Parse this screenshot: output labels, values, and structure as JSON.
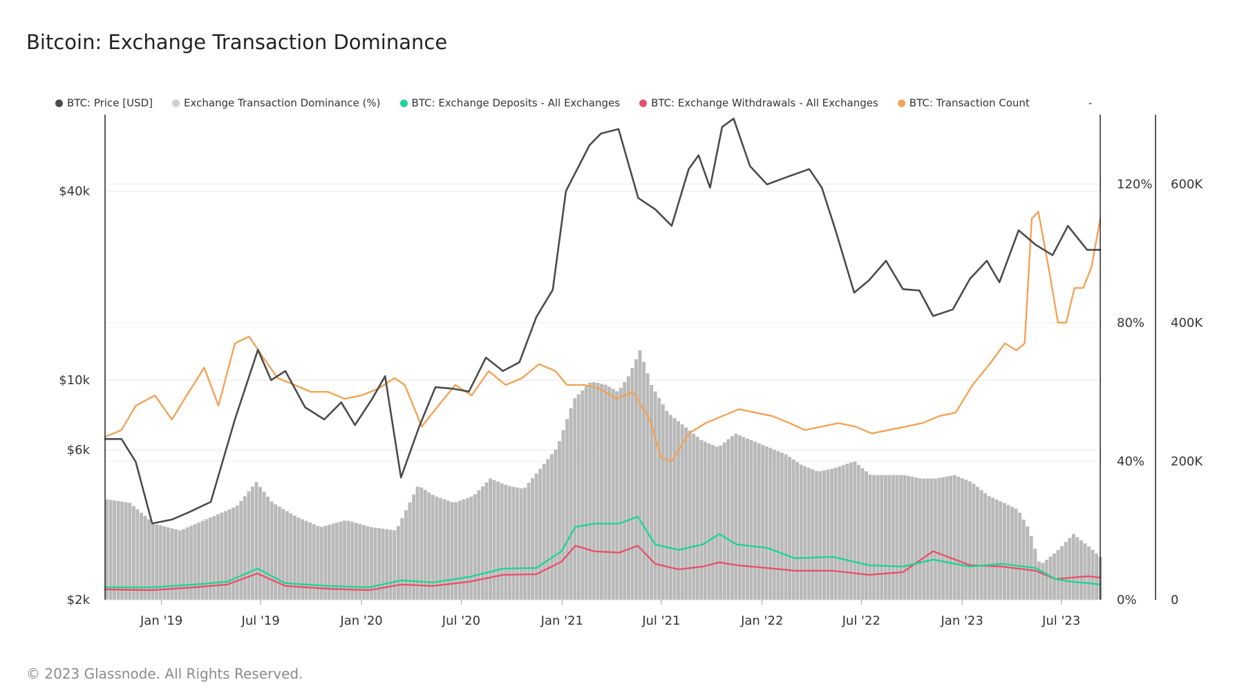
{
  "title": "Bitcoin: Exchange Transaction Dominance",
  "footer": "© 2023 Glassnode. All Rights Reserved.",
  "legend": [
    {
      "label": "BTC: Price [USD]",
      "color": "#4a4a4a"
    },
    {
      "label": "Exchange Transaction Dominance (%)",
      "color": "#cfcfcf"
    },
    {
      "label": "BTC: Exchange Deposits - All Exchanges",
      "color": "#1fd494"
    },
    {
      "label": "BTC: Exchange Withdrawals - All Exchanges",
      "color": "#e8516a"
    },
    {
      "label": "BTC: Transaction Count",
      "color": "#f2a255"
    }
  ],
  "legend_tail": "-",
  "chart_data": {
    "type": "line",
    "x_ticks": [
      "Jan '19",
      "Jul '19",
      "Jan '20",
      "Jul '20",
      "Jan '21",
      "Jul '21",
      "Jan '22",
      "Jul '22",
      "Jan '23",
      "Jul '23"
    ],
    "x_tick_dates": [
      "2019-01-01",
      "2019-07-01",
      "2020-01-01",
      "2020-07-01",
      "2021-01-01",
      "2021-07-01",
      "2022-01-01",
      "2022-07-01",
      "2023-01-01",
      "2023-07-01"
    ],
    "x_range": [
      "2018-09-20",
      "2023-09-10"
    ],
    "y_price_scale": "log",
    "y_price_ticks": [
      "$2k",
      "$6k",
      "$10k",
      "$40k"
    ],
    "y_price_tick_values": [
      2000,
      6000,
      10000,
      40000
    ],
    "y_price_range": [
      2000,
      70000
    ],
    "y_pct_ticks": [
      "0%",
      "40%",
      "80%",
      "120%"
    ],
    "y_pct_tick_values": [
      0,
      40,
      80,
      120
    ],
    "y_pct_range": [
      0,
      140
    ],
    "y_count_ticks": [
      "0",
      "200K",
      "400K",
      "600K"
    ],
    "y_count_tick_values": [
      0,
      200000,
      400000,
      600000
    ],
    "y_count_range": [
      0,
      700000
    ],
    "series": [
      {
        "name": "BTC: Price [USD]",
        "axis": "price",
        "color": "#4a4a4a",
        "x": [
          "2018-09-20",
          "2018-10-20",
          "2018-11-15",
          "2018-12-15",
          "2019-01-20",
          "2019-02-20",
          "2019-04-01",
          "2019-05-15",
          "2019-06-26",
          "2019-07-20",
          "2019-08-15",
          "2019-09-20",
          "2019-10-25",
          "2019-11-25",
          "2019-12-20",
          "2020-01-20",
          "2020-02-13",
          "2020-03-13",
          "2020-04-15",
          "2020-05-15",
          "2020-06-15",
          "2020-07-15",
          "2020-08-15",
          "2020-09-15",
          "2020-10-15",
          "2020-11-15",
          "2020-12-15",
          "2021-01-08",
          "2021-02-20",
          "2021-03-13",
          "2021-04-14",
          "2021-05-20",
          "2021-06-20",
          "2021-07-20",
          "2021-08-20",
          "2021-09-07",
          "2021-09-28",
          "2021-10-20",
          "2021-11-10",
          "2021-12-10",
          "2022-01-10",
          "2022-02-10",
          "2022-03-28",
          "2022-04-20",
          "2022-05-15",
          "2022-06-18",
          "2022-07-15",
          "2022-08-15",
          "2022-09-15",
          "2022-10-15",
          "2022-11-09",
          "2022-12-15",
          "2023-01-15",
          "2023-02-15",
          "2023-03-10",
          "2023-04-14",
          "2023-05-15",
          "2023-06-15",
          "2023-07-13",
          "2023-08-17",
          "2023-09-10"
        ],
        "values": [
          6500,
          6500,
          5500,
          3500,
          3600,
          3800,
          4100,
          7500,
          12500,
          10000,
          10700,
          8200,
          7500,
          8500,
          7200,
          8700,
          10300,
          4900,
          7100,
          9500,
          9400,
          9200,
          11800,
          10700,
          11400,
          15900,
          19400,
          40000,
          56000,
          61000,
          63000,
          38000,
          35000,
          31000,
          47000,
          52000,
          41000,
          64000,
          68000,
          48000,
          42000,
          44000,
          47000,
          41000,
          30000,
          19000,
          20800,
          24000,
          19500,
          19300,
          16000,
          16800,
          21000,
          24000,
          20500,
          30000,
          27000,
          25000,
          31000,
          26000,
          26000
        ]
      },
      {
        "name": "Exchange Transaction Dominance (%)",
        "axis": "pct",
        "color": "#b9b9b9",
        "x": [
          "2018-09-20",
          "2018-11-01",
          "2018-12-15",
          "2019-02-01",
          "2019-04-01",
          "2019-05-15",
          "2019-06-20",
          "2019-07-20",
          "2019-09-01",
          "2019-10-15",
          "2019-12-01",
          "2020-01-15",
          "2020-03-01",
          "2020-04-10",
          "2020-05-10",
          "2020-06-15",
          "2020-07-20",
          "2020-08-20",
          "2020-09-20",
          "2020-10-20",
          "2020-11-20",
          "2020-12-20",
          "2021-01-20",
          "2021-02-20",
          "2021-03-20",
          "2021-04-10",
          "2021-05-01",
          "2021-05-20",
          "2021-06-10",
          "2021-07-10",
          "2021-08-10",
          "2021-09-10",
          "2021-10-10",
          "2021-11-10",
          "2021-12-10",
          "2022-01-10",
          "2022-02-10",
          "2022-03-10",
          "2022-04-10",
          "2022-05-10",
          "2022-06-15",
          "2022-07-15",
          "2022-08-15",
          "2022-09-15",
          "2022-10-15",
          "2022-11-10",
          "2022-12-15",
          "2023-01-15",
          "2023-02-15",
          "2023-03-15",
          "2023-04-10",
          "2023-05-01",
          "2023-05-20",
          "2023-06-20",
          "2023-07-20",
          "2023-08-20",
          "2023-09-10"
        ],
        "values": [
          29,
          28,
          22,
          20,
          24,
          27,
          34,
          28,
          24,
          21,
          23,
          21,
          20,
          33,
          30,
          28,
          30,
          35,
          33,
          32,
          38,
          44,
          58,
          63,
          62,
          60,
          65,
          72,
          62,
          54,
          50,
          46,
          44,
          48,
          46,
          44,
          42,
          39,
          37,
          38,
          40,
          36,
          36,
          36,
          35,
          35,
          36,
          34,
          30,
          28,
          26,
          20,
          10,
          14,
          19,
          15,
          12
        ]
      },
      {
        "name": "BTC: Exchange Deposits - All Exchanges",
        "axis": "count",
        "color": "#1fd494",
        "x": [
          "2018-09-20",
          "2018-12-15",
          "2019-03-01",
          "2019-05-01",
          "2019-06-25",
          "2019-08-15",
          "2019-11-01",
          "2020-01-15",
          "2020-03-13",
          "2020-05-10",
          "2020-07-15",
          "2020-09-15",
          "2020-11-15",
          "2020-12-31",
          "2021-01-25",
          "2021-03-01",
          "2021-04-15",
          "2021-05-19",
          "2021-06-20",
          "2021-08-01",
          "2021-09-15",
          "2021-10-15",
          "2021-11-15",
          "2022-01-10",
          "2022-03-01",
          "2022-05-10",
          "2022-07-15",
          "2022-09-15",
          "2022-11-09",
          "2023-01-15",
          "2023-03-15",
          "2023-05-15",
          "2023-06-20",
          "2023-07-20",
          "2023-08-20",
          "2023-09-10"
        ],
        "values": [
          18000,
          18000,
          22000,
          26000,
          45000,
          24000,
          20000,
          18000,
          28000,
          25000,
          33000,
          45000,
          46000,
          70000,
          105000,
          110000,
          110000,
          120000,
          80000,
          72000,
          80000,
          95000,
          80000,
          75000,
          60000,
          62000,
          50000,
          48000,
          58000,
          48000,
          52000,
          46000,
          30000,
          26000,
          24000,
          22000
        ]
      },
      {
        "name": "BTC: Exchange Withdrawals - All Exchanges",
        "axis": "count",
        "color": "#e8516a",
        "x": [
          "2018-09-20",
          "2018-12-15",
          "2019-03-01",
          "2019-05-01",
          "2019-06-25",
          "2019-08-15",
          "2019-11-01",
          "2020-01-15",
          "2020-03-13",
          "2020-05-10",
          "2020-07-15",
          "2020-09-15",
          "2020-11-15",
          "2020-12-31",
          "2021-01-25",
          "2021-03-01",
          "2021-04-15",
          "2021-05-19",
          "2021-06-20",
          "2021-08-01",
          "2021-09-15",
          "2021-10-15",
          "2021-11-15",
          "2022-01-10",
          "2022-03-01",
          "2022-05-10",
          "2022-07-15",
          "2022-09-15",
          "2022-11-09",
          "2023-01-15",
          "2023-03-15",
          "2023-05-15",
          "2023-06-20",
          "2023-07-20",
          "2023-08-20",
          "2023-09-10"
        ],
        "values": [
          15000,
          14000,
          18000,
          22000,
          38000,
          20000,
          16000,
          14000,
          22000,
          20000,
          26000,
          36000,
          37000,
          55000,
          78000,
          70000,
          68000,
          78000,
          52000,
          44000,
          48000,
          54000,
          50000,
          46000,
          42000,
          42000,
          36000,
          40000,
          70000,
          50000,
          48000,
          42000,
          30000,
          32000,
          34000,
          32000
        ]
      },
      {
        "name": "BTC: Transaction Count",
        "axis": "count",
        "color": "#f2a255",
        "x": [
          "2018-09-20",
          "2018-10-20",
          "2018-11-15",
          "2018-12-20",
          "2019-01-20",
          "2019-02-20",
          "2019-03-20",
          "2019-04-15",
          "2019-05-15",
          "2019-06-10",
          "2019-07-05",
          "2019-08-01",
          "2019-09-01",
          "2019-10-01",
          "2019-11-01",
          "2019-12-01",
          "2020-01-01",
          "2020-02-01",
          "2020-03-01",
          "2020-03-20",
          "2020-04-20",
          "2020-05-20",
          "2020-06-20",
          "2020-07-20",
          "2020-08-20",
          "2020-09-20",
          "2020-10-20",
          "2020-11-20",
          "2020-12-20",
          "2021-01-10",
          "2021-02-10",
          "2021-03-10",
          "2021-04-10",
          "2021-05-10",
          "2021-06-10",
          "2021-07-01",
          "2021-07-20",
          "2021-08-20",
          "2021-09-20",
          "2021-10-20",
          "2021-11-20",
          "2021-12-20",
          "2022-01-20",
          "2022-02-20",
          "2022-03-20",
          "2022-04-20",
          "2022-05-20",
          "2022-06-20",
          "2022-07-20",
          "2022-08-20",
          "2022-09-20",
          "2022-10-20",
          "2022-11-20",
          "2022-12-20",
          "2023-01-20",
          "2023-02-20",
          "2023-03-20",
          "2023-04-10",
          "2023-04-25",
          "2023-05-08",
          "2023-05-20",
          "2023-06-10",
          "2023-06-25",
          "2023-07-10",
          "2023-07-25",
          "2023-08-10",
          "2023-08-25",
          "2023-09-10"
        ],
        "values": [
          235000,
          245000,
          280000,
          295000,
          260000,
          300000,
          335000,
          280000,
          370000,
          380000,
          350000,
          320000,
          310000,
          300000,
          300000,
          290000,
          295000,
          305000,
          320000,
          310000,
          250000,
          280000,
          310000,
          295000,
          330000,
          310000,
          320000,
          340000,
          330000,
          310000,
          310000,
          305000,
          290000,
          300000,
          260000,
          205000,
          200000,
          240000,
          255000,
          265000,
          275000,
          270000,
          265000,
          255000,
          245000,
          250000,
          255000,
          250000,
          240000,
          245000,
          250000,
          255000,
          265000,
          270000,
          310000,
          340000,
          370000,
          360000,
          370000,
          550000,
          560000,
          470000,
          400000,
          400000,
          450000,
          450000,
          480000,
          550000
        ]
      }
    ]
  }
}
